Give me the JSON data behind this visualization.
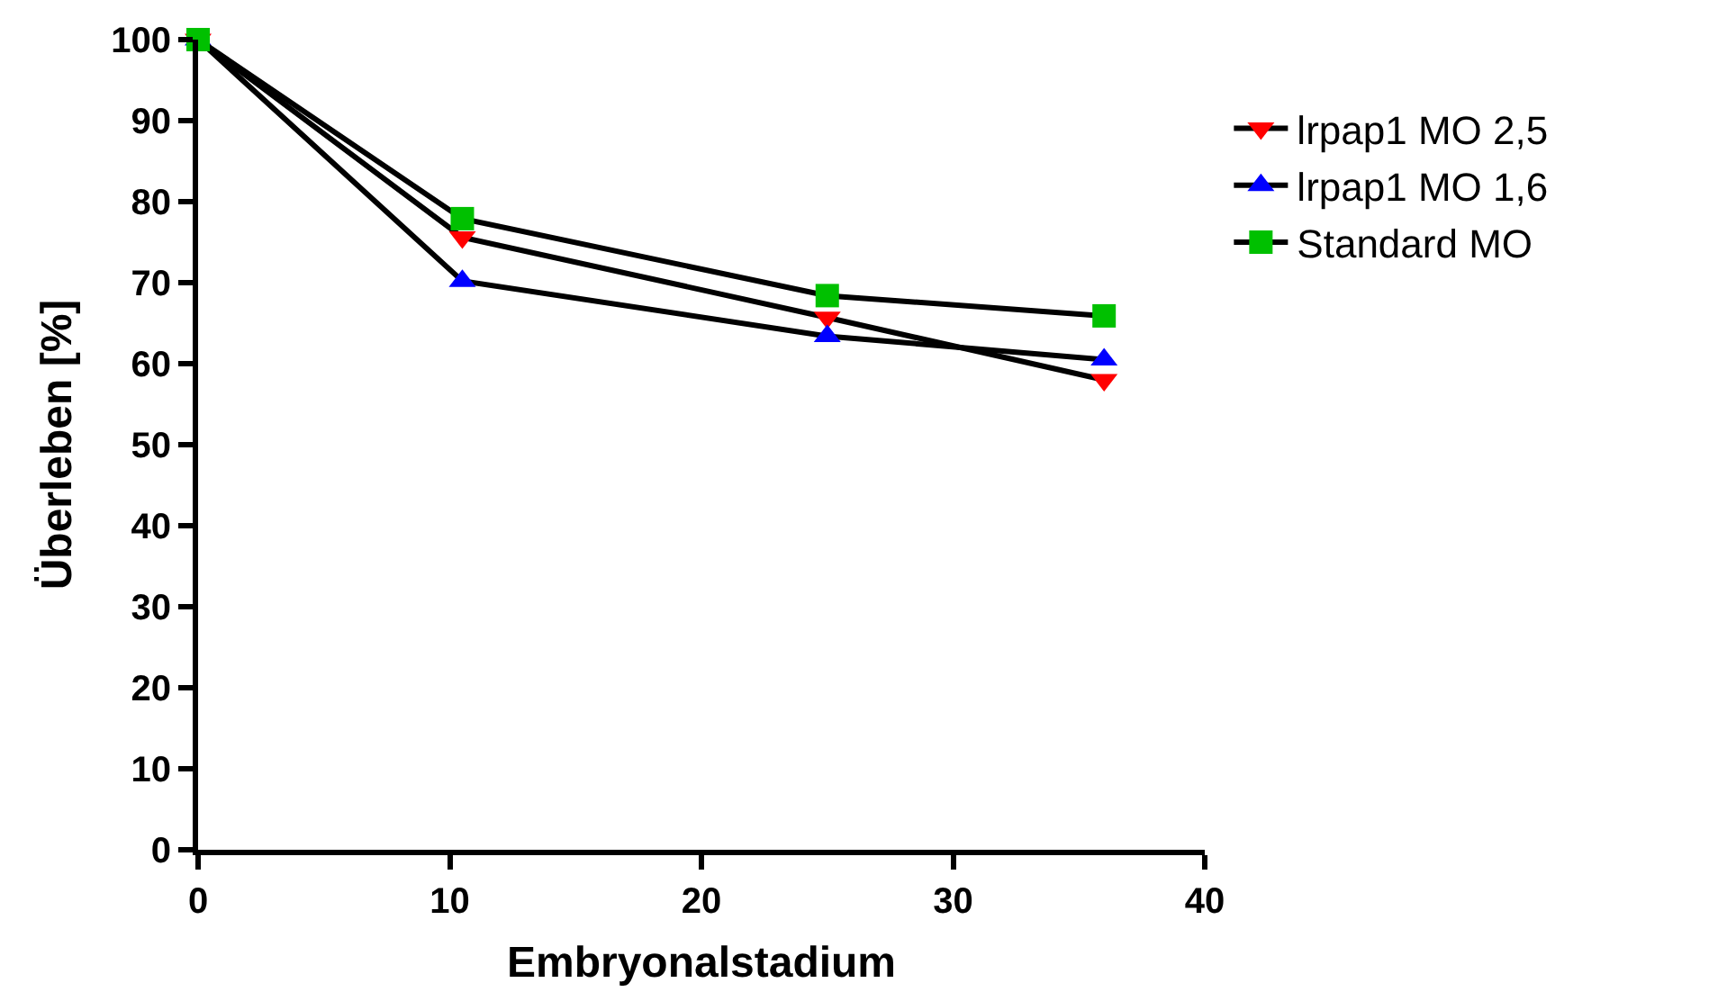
{
  "chart_data": {
    "type": "line",
    "xlabel": "Embryonalstadium",
    "ylabel": "Überleben [%]",
    "x": [
      0,
      10.5,
      25,
      36
    ],
    "series": [
      {
        "name": "lrpap1 MO 2,5",
        "color": "#ff0000",
        "marker": "triangle-down",
        "values": [
          100,
          75.6,
          65.7,
          58
        ]
      },
      {
        "name": "lrpap1 MO 1,6",
        "color": "#0000ff",
        "marker": "triangle",
        "values": [
          100,
          70.2,
          63.4,
          60.5
        ]
      },
      {
        "name": "Standard MO",
        "color": "#00c000",
        "marker": "square",
        "values": [
          100,
          77.9,
          68.4,
          65.9
        ]
      }
    ],
    "xlim": [
      0,
      40
    ],
    "xticks": [
      0,
      10,
      20,
      30,
      40
    ],
    "ylim": [
      0,
      100
    ],
    "yticks": [
      0,
      10,
      20,
      30,
      40,
      50,
      60,
      70,
      80,
      90,
      100
    ],
    "legend": "right",
    "line_style": "solid"
  }
}
